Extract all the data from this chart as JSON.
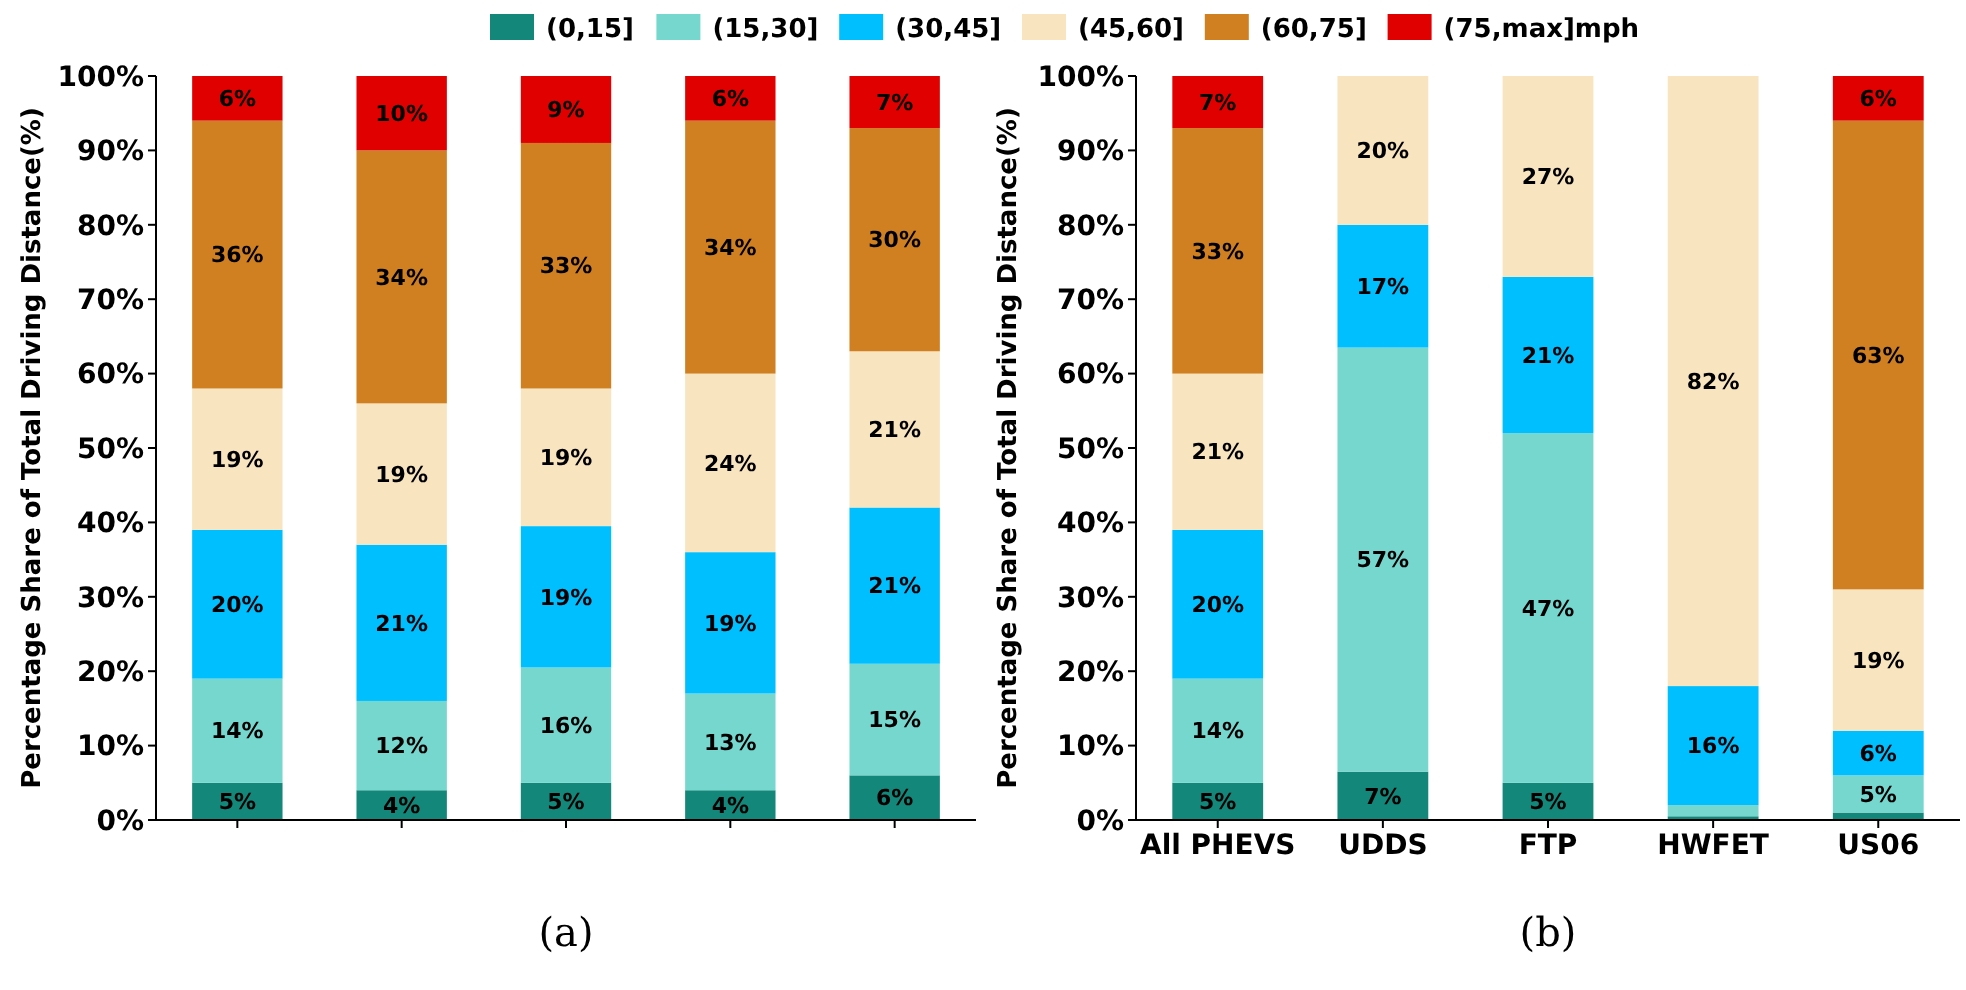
{
  "chart_data": [
    {
      "type": "bar",
      "stacked": true,
      "ylabel": "Percentage Share of Total Driving Distance(%)",
      "annotations": [
        "(a)"
      ],
      "legend": "top",
      "grid": false,
      "categories": [
        null,
        null,
        null,
        null,
        null
      ],
      "ylim": [
        0,
        100
      ],
      "yticks": [
        {
          "value": 0,
          "label": "0%"
        },
        {
          "value": 10,
          "label": "10%"
        },
        {
          "value": 20,
          "label": "20%"
        },
        {
          "value": 30,
          "label": "30%"
        },
        {
          "value": 40,
          "label": "40%"
        },
        {
          "value": 50,
          "label": "50%"
        },
        {
          "value": 60,
          "label": "60%"
        },
        {
          "value": 70,
          "label": "70%"
        },
        {
          "value": 80,
          "label": "80%"
        },
        {
          "value": 90,
          "label": "90%"
        },
        {
          "value": 100,
          "label": "100%"
        }
      ],
      "series": [
        {
          "name": "(0,15]",
          "color": "#13877a",
          "values": [
            5,
            4,
            5,
            4,
            6
          ],
          "value_labels": [
            "5%",
            "4%",
            "5%",
            "4%",
            "6%"
          ]
        },
        {
          "name": "(15,30]",
          "color": "#76d7cf",
          "values": [
            14,
            12,
            15.5,
            13,
            15
          ],
          "value_labels": [
            "14%",
            "12%",
            "16%",
            "13%",
            "15%"
          ]
        },
        {
          "name": "(30,45]",
          "color": "#00bfff",
          "values": [
            20,
            21,
            19,
            19,
            21
          ],
          "value_labels": [
            "20%",
            "21%",
            "19%",
            "19%",
            "21%"
          ]
        },
        {
          "name": "(45,60]",
          "color": "#f8e4bf",
          "values": [
            19,
            19,
            18.5,
            24,
            21
          ],
          "value_labels": [
            "19%",
            "19%",
            "19%",
            "24%",
            "21%"
          ]
        },
        {
          "name": "(60,75]",
          "color": "#d08020",
          "values": [
            36,
            34,
            33,
            34,
            30
          ],
          "value_labels": [
            "36%",
            "34%",
            "33%",
            "34%",
            "30%"
          ]
        },
        {
          "name": "(75,max]mph",
          "color": "#e00000",
          "values": [
            6,
            10,
            9,
            6,
            7
          ],
          "value_labels": [
            "6%",
            "10%",
            "9%",
            "6%",
            "7%"
          ]
        }
      ]
    },
    {
      "type": "bar",
      "stacked": true,
      "ylabel": "Percentage Share of Total Driving Distance(%)",
      "annotations": [
        "(b)"
      ],
      "grid": false,
      "categories": [
        "All PHEVS",
        "UDDS",
        "FTP",
        "HWFET",
        "US06"
      ],
      "ylim": [
        0,
        100
      ],
      "yticks": [
        {
          "value": 0,
          "label": "0%"
        },
        {
          "value": 10,
          "label": "10%"
        },
        {
          "value": 20,
          "label": "20%"
        },
        {
          "value": 30,
          "label": "30%"
        },
        {
          "value": 40,
          "label": "40%"
        },
        {
          "value": 50,
          "label": "50%"
        },
        {
          "value": 60,
          "label": "60%"
        },
        {
          "value": 70,
          "label": "70%"
        },
        {
          "value": 80,
          "label": "80%"
        },
        {
          "value": 90,
          "label": "90%"
        },
        {
          "value": 100,
          "label": "100%"
        }
      ],
      "series": [
        {
          "color": "#13877a",
          "values": [
            5,
            6.5,
            5,
            0.5,
            1
          ],
          "value_labels": [
            "5%",
            "7%",
            "5%",
            null,
            null
          ]
        },
        {
          "color": "#76d7cf",
          "values": [
            14,
            57,
            47,
            1.5,
            5
          ],
          "value_labels": [
            "14%",
            "57%",
            "47%",
            null,
            "5%"
          ]
        },
        {
          "color": "#00bfff",
          "values": [
            20,
            16.5,
            21,
            16,
            6
          ],
          "value_labels": [
            "20%",
            "17%",
            "21%",
            "16%",
            "6%"
          ]
        },
        {
          "color": "#f8e4bf",
          "values": [
            21,
            20,
            27,
            82,
            19
          ],
          "value_labels": [
            "21%",
            "20%",
            "27%",
            "82%",
            "19%"
          ]
        },
        {
          "color": "#d08020",
          "values": [
            33,
            0,
            0,
            0,
            63
          ],
          "value_labels": [
            "33%",
            null,
            null,
            null,
            "63%"
          ]
        },
        {
          "color": "#e00000",
          "values": [
            7,
            0,
            0,
            0,
            6
          ],
          "value_labels": [
            "7%",
            null,
            null,
            null,
            "6%"
          ]
        }
      ]
    }
  ]
}
